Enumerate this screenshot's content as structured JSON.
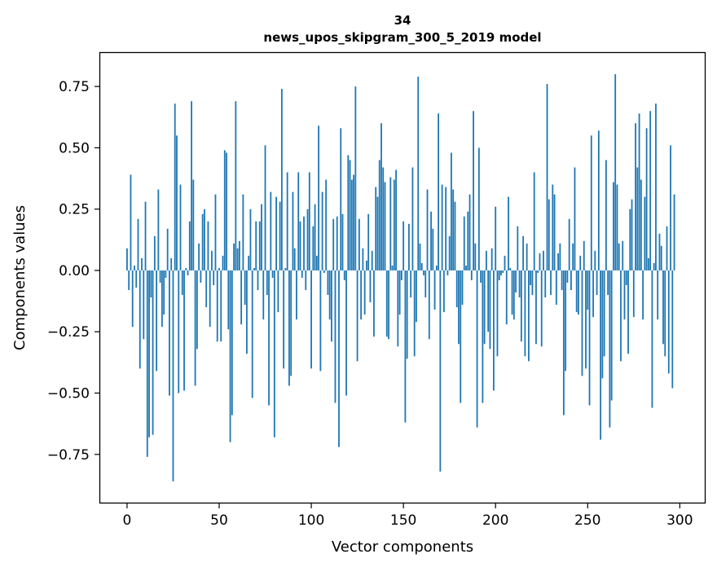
{
  "chart_data": {
    "type": "bar",
    "title": "34",
    "subtitle": "news_upos_skipgram_300_5_2019 model",
    "xlabel": "Vector components",
    "ylabel": "Components values",
    "xlim": [
      -15,
      314
    ],
    "ylim": [
      -0.95,
      0.89
    ],
    "xticks": [
      0,
      50,
      100,
      150,
      200,
      250,
      300
    ],
    "yticks": [
      -0.75,
      -0.5,
      -0.25,
      0.0,
      0.25,
      0.5,
      0.75
    ],
    "ytick_labels": [
      "−0.75",
      "−0.50",
      "−0.25",
      "0.00",
      "0.25",
      "0.50",
      "0.75"
    ],
    "color": "#1f77b4",
    "values": [
      0.09,
      -0.08,
      0.39,
      -0.23,
      0.02,
      -0.07,
      0.21,
      -0.4,
      0.05,
      -0.28,
      0.28,
      -0.76,
      -0.68,
      -0.11,
      -0.67,
      0.14,
      -0.41,
      0.33,
      -0.05,
      -0.23,
      -0.18,
      -0.03,
      0.17,
      -0.51,
      0.05,
      -0.86,
      0.68,
      0.55,
      -0.5,
      0.35,
      -0.1,
      -0.49,
      0.01,
      -0.02,
      0.2,
      0.69,
      0.37,
      -0.47,
      -0.32,
      0.11,
      -0.05,
      0.23,
      0.25,
      -0.15,
      0.2,
      -0.23,
      0.08,
      -0.06,
      0.31,
      -0.29,
      0.01,
      -0.29,
      0.06,
      0.49,
      0.48,
      -0.24,
      -0.7,
      -0.59,
      0.11,
      0.69,
      0.09,
      0.12,
      -0.22,
      0.31,
      -0.14,
      -0.34,
      0.06,
      0.25,
      -0.52,
      0.01,
      0.2,
      -0.08,
      0.2,
      0.27,
      -0.2,
      0.51,
      -0.1,
      -0.55,
      0.32,
      -0.03,
      -0.68,
      0.3,
      -0.17,
      0.28,
      0.74,
      -0.4,
      0.01,
      0.4,
      -0.47,
      -0.43,
      0.32,
      0.09,
      -0.2,
      0.4,
      0.2,
      -0.03,
      0.22,
      -0.08,
      0.25,
      0.4,
      -0.4,
      0.18,
      0.27,
      0.06,
      0.59,
      -0.41,
      0.32,
      -0.01,
      0.37,
      -0.1,
      -0.2,
      -0.29,
      0.21,
      -0.54,
      0.22,
      -0.72,
      0.58,
      0.23,
      -0.04,
      -0.51,
      0.47,
      0.45,
      0.37,
      0.39,
      0.75,
      -0.37,
      0.21,
      -0.2,
      0.09,
      -0.18,
      0.04,
      0.23,
      -0.13,
      0.08,
      -0.27,
      0.34,
      0.3,
      0.45,
      0.6,
      0.42,
      0.36,
      -0.27,
      -0.28,
      0.38,
      0.02,
      0.37,
      0.41,
      -0.31,
      -0.18,
      -0.04,
      0.2,
      -0.62,
      -0.36,
      0.19,
      -0.11,
      0.42,
      -0.35,
      -0.21,
      0.79,
      0.11,
      0.03,
      -0.02,
      -0.11,
      0.33,
      -0.28,
      0.24,
      0.17,
      -0.16,
      0.02,
      0.64,
      -0.82,
      0.35,
      -0.17,
      0.34,
      -0.02,
      0.14,
      0.48,
      0.33,
      0.28,
      -0.15,
      -0.3,
      -0.54,
      -0.14,
      0.22,
      0.02,
      0.24,
      0.31,
      -0.04,
      0.65,
      0.11,
      -0.64,
      0.5,
      -0.05,
      -0.54,
      -0.3,
      0.08,
      -0.25,
      -0.32,
      0.09,
      -0.49,
      0.26,
      -0.35,
      -0.04,
      -0.02,
      -0.01,
      0.06,
      -0.22,
      0.3,
      0.01,
      -0.18,
      -0.2,
      -0.09,
      0.18,
      -0.11,
      -0.29,
      0.14,
      -0.35,
      0.11,
      -0.37,
      -0.06,
      -0.1,
      0.4,
      -0.3,
      -0.01,
      0.07,
      -0.31,
      0.08,
      -0.11,
      0.76,
      0.29,
      -0.1,
      0.35,
      0.31,
      -0.14,
      0.07,
      0.11,
      -0.08,
      -0.59,
      -0.41,
      -0.05,
      0.21,
      -0.08,
      0.11,
      0.42,
      -0.17,
      -0.18,
      0.06,
      -0.43,
      0.12,
      -0.4,
      -0.16,
      -0.55,
      0.55,
      -0.19,
      0.08,
      -0.1,
      0.57,
      -0.69,
      -0.44,
      -0.35,
      0.45,
      -0.1,
      -0.64,
      -0.53,
      0.36,
      0.8,
      0.35,
      0.11,
      -0.37,
      0.12,
      -0.2,
      -0.06,
      -0.34,
      0.25,
      0.29,
      -0.19,
      0.6,
      0.42,
      0.64,
      0.37,
      -0.2,
      0.3,
      0.58,
      0.05,
      0.65,
      -0.56,
      0.03,
      0.68,
      -0.2,
      0.15,
      0.1,
      -0.3,
      -0.35,
      0.18,
      -0.42,
      0.51,
      -0.48,
      0.31
    ]
  }
}
